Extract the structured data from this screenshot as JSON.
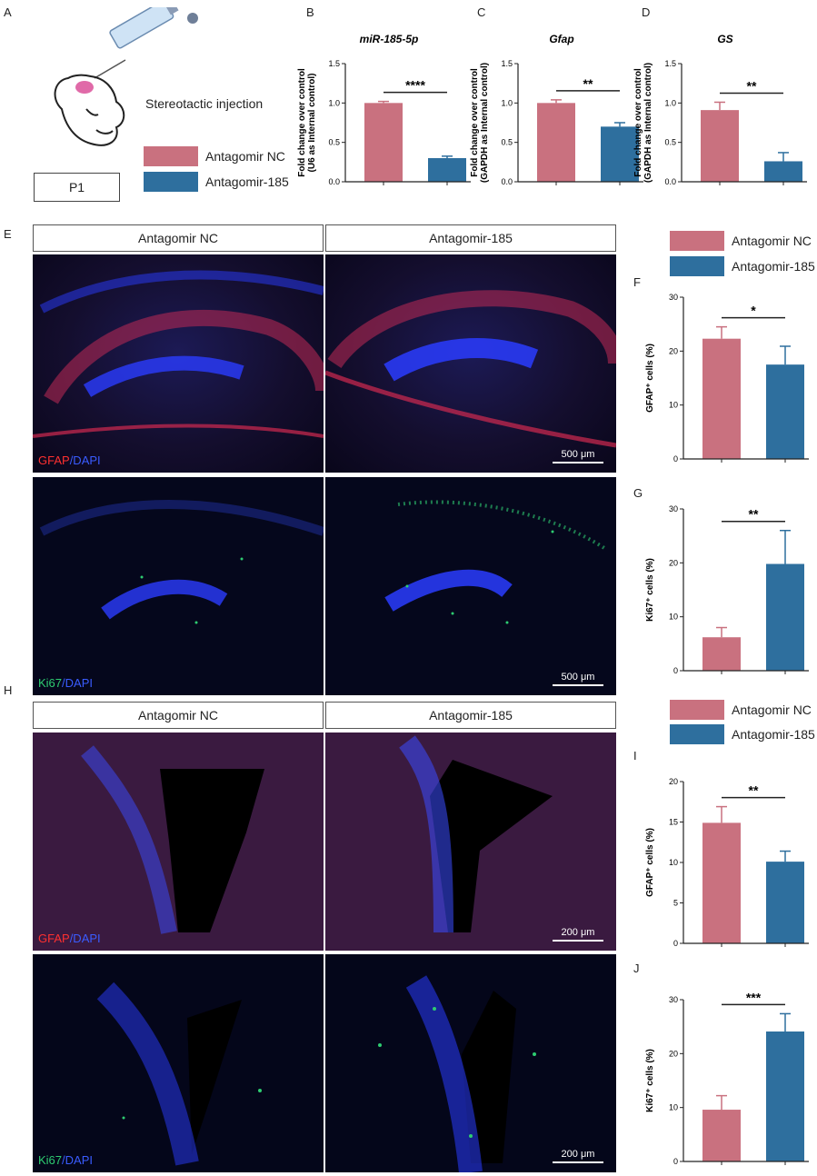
{
  "panel_letters": {
    "A": "A",
    "B": "B",
    "C": "C",
    "D": "D",
    "E": "E",
    "F": "F",
    "G": "G",
    "H": "H",
    "I": "I",
    "J": "J"
  },
  "panel_a": {
    "injection_label": "Stereotactic injection",
    "age_label": "P1"
  },
  "legend": {
    "nc": "Antagomir NC",
    "treat": "Antagomir-185"
  },
  "colors": {
    "nc": "#c9717f",
    "treat": "#2e6f9e",
    "gfap": "#ff3030",
    "dapi": "#3a5cff",
    "ki67": "#2ecc71"
  },
  "micro_headers": {
    "nc": "Antagomir NC",
    "treat": "Antagomir-185"
  },
  "micro_labels": {
    "gfap_marker": "GFAP",
    "ki67_marker": "Ki67",
    "dapi_marker": "/DAPI",
    "scale_500": "500 μm",
    "scale_200": "200 μm"
  },
  "chart_data": [
    {
      "id": "B",
      "type": "bar",
      "title": "miR-185-5p",
      "ylabel": [
        "Fold change over control",
        "(U6 as Internal control)"
      ],
      "categories": [
        "Antagomir NC",
        "Antagomir-185"
      ],
      "values": [
        1.0,
        0.3
      ],
      "errors": [
        0.02,
        0.025
      ],
      "ylim": [
        0,
        1.5
      ],
      "ticks": [
        0.0,
        0.5,
        1.0,
        1.5
      ],
      "significance": "****"
    },
    {
      "id": "C",
      "type": "bar",
      "title": "Gfap",
      "ylabel": [
        "Fold change over control",
        "(GAPDH as Internal control)"
      ],
      "categories": [
        "Antagomir NC",
        "Antagomir-185"
      ],
      "values": [
        1.0,
        0.7
      ],
      "errors": [
        0.04,
        0.05
      ],
      "ylim": [
        0,
        1.5
      ],
      "ticks": [
        0.0,
        0.5,
        1.0,
        1.5
      ],
      "significance": "**"
    },
    {
      "id": "D",
      "type": "bar",
      "title": "GS",
      "ylabel": [
        "Fold change over control",
        "(GAPDH as Internal control)"
      ],
      "categories": [
        "Antagomir NC",
        "Antagomir-185"
      ],
      "values": [
        0.91,
        0.26
      ],
      "errors": [
        0.1,
        0.11
      ],
      "ylim": [
        0,
        1.5
      ],
      "ticks": [
        0.0,
        0.5,
        1.0,
        1.5
      ],
      "significance": "**"
    },
    {
      "id": "F",
      "type": "bar",
      "title": "",
      "ylabel": [
        "GFAP⁺ cells (%)"
      ],
      "categories": [
        "Antagomir NC",
        "Antagomir-185"
      ],
      "values": [
        22.3,
        17.5
      ],
      "errors": [
        2.2,
        3.4
      ],
      "ylim": [
        0,
        30
      ],
      "ticks": [
        0,
        10,
        20,
        30
      ],
      "significance": "*"
    },
    {
      "id": "G",
      "type": "bar",
      "title": "",
      "ylabel": [
        "Ki67⁺ cells (%)"
      ],
      "categories": [
        "Antagomir NC",
        "Antagomir-185"
      ],
      "values": [
        6.2,
        19.8
      ],
      "errors": [
        1.8,
        6.2
      ],
      "ylim": [
        0,
        30
      ],
      "ticks": [
        0,
        10,
        20,
        30
      ],
      "significance": "**"
    },
    {
      "id": "I",
      "type": "bar",
      "title": "",
      "ylabel": [
        "GFAP⁺ cells (%)"
      ],
      "categories": [
        "Antagomir NC",
        "Antagomir-185"
      ],
      "values": [
        14.9,
        10.1
      ],
      "errors": [
        2.0,
        1.3
      ],
      "ylim": [
        0,
        20
      ],
      "ticks": [
        0,
        5,
        10,
        15,
        20
      ],
      "significance": "**"
    },
    {
      "id": "J",
      "type": "bar",
      "title": "",
      "ylabel": [
        "Ki67⁺ cells (%)"
      ],
      "categories": [
        "Antagomir NC",
        "Antagomir-185"
      ],
      "values": [
        9.6,
        24.1
      ],
      "errors": [
        2.6,
        3.3
      ],
      "ylim": [
        0,
        30
      ],
      "ticks": [
        0,
        10,
        20,
        30
      ],
      "significance": "***"
    }
  ]
}
